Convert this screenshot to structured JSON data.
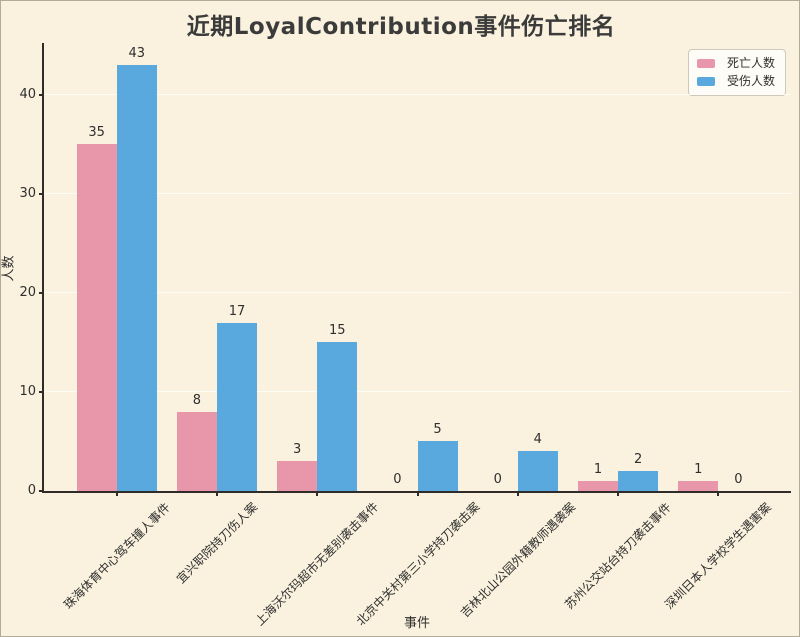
{
  "title": "近期LoyalContribution事件伤亡排名",
  "chart_data": {
    "type": "bar",
    "title": "近期LoyalContribution事件伤亡排名",
    "xlabel": "事件",
    "ylabel": "人数",
    "ylim": [
      0,
      45.2
    ],
    "yticks": [
      0,
      10,
      20,
      30,
      40
    ],
    "grid": true,
    "legend_position": "top-right",
    "categories": [
      "珠海体育中心驾车撞人事件",
      "宜兴职院持刀伤人案",
      "上海沃尔玛超市无差别袭击事件",
      "北京中关村第三小学持刀袭击案",
      "吉林北山公园外籍教师遇袭案",
      "苏州公交站台持刀袭击事件",
      "深圳日本人学校学生遇害案"
    ],
    "series": [
      {
        "name": "死亡人数",
        "color": "#e897ab",
        "values": [
          35,
          8,
          3,
          0,
          0,
          1,
          1
        ]
      },
      {
        "name": "受伤人数",
        "color": "#5aa9de",
        "values": [
          43,
          17,
          15,
          5,
          4,
          2,
          0
        ]
      }
    ]
  },
  "colors": {
    "background": "#faf2de",
    "axis": "#2e2b28",
    "text": "#2f2f2f",
    "grid": "#ffffff",
    "legend_bg": "#fdfcf6"
  }
}
